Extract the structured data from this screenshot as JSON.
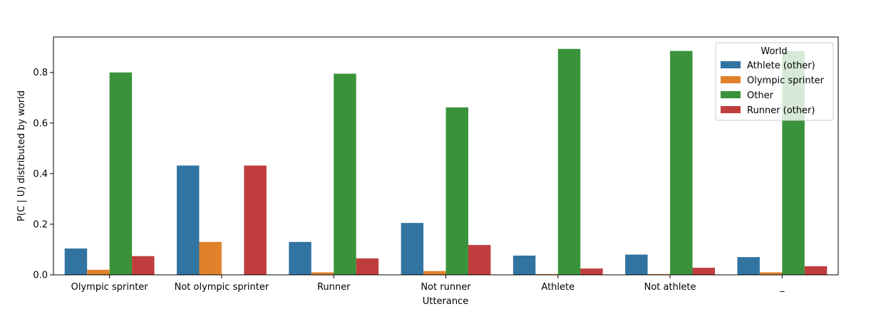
{
  "chart_data": {
    "type": "bar",
    "title": "",
    "xlabel": "Utterance",
    "ylabel": "P(C | U) distributed by world",
    "ylim": [
      0,
      0.94
    ],
    "yticks": [
      "0.0",
      "0.2",
      "0.4",
      "0.6",
      "0.8"
    ],
    "grid": false,
    "legend_position": "top-right",
    "legend_title": "World",
    "categories": [
      "Olympic sprinter",
      "Not olympic sprinter",
      "Runner",
      "Not runner",
      "Athlete",
      "Not athlete",
      "_"
    ],
    "series": [
      {
        "name": "Athlete (other)",
        "color": "#3274a1",
        "values": [
          0.104,
          0.432,
          0.13,
          0.205,
          0.076,
          0.08,
          0.07
        ]
      },
      {
        "name": "Olympic sprinter",
        "color": "#e1812c",
        "values": [
          0.02,
          0.13,
          0.01,
          0.015,
          0.003,
          0.003,
          0.01
        ]
      },
      {
        "name": "Other",
        "color": "#3a923a",
        "values": [
          0.8,
          0.0,
          0.795,
          0.662,
          0.893,
          0.885,
          0.885
        ]
      },
      {
        "name": "Runner (other)",
        "color": "#c03d3e",
        "values": [
          0.074,
          0.432,
          0.065,
          0.118,
          0.025,
          0.028,
          0.034
        ]
      }
    ]
  }
}
